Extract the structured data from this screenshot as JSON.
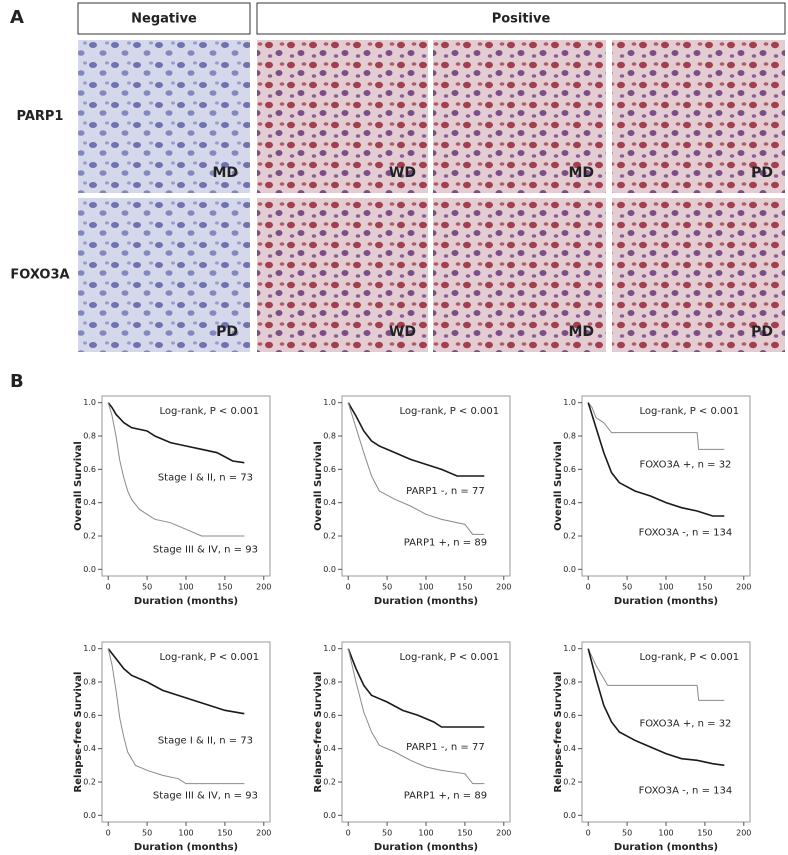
{
  "panel_a": {
    "label": "A",
    "header": [
      "Negative",
      "Positive"
    ],
    "rows": [
      {
        "label": "PARP1",
        "grades": [
          "MD",
          "WD",
          "MD",
          "PD"
        ]
      },
      {
        "label": "FOXO3A",
        "grades": [
          "PD",
          "WD",
          "MD",
          "PD"
        ]
      }
    ]
  },
  "panel_b": {
    "label": "B"
  },
  "chart_data": [
    {
      "type": "line",
      "ylabel": "Overall Survival",
      "xlabel": "Duration (months)",
      "annotation": "Log-rank, P < 0.001",
      "xlim": [
        -8,
        208
      ],
      "ylim": [
        -0.04,
        1.04
      ],
      "xticks": [
        0,
        50,
        100,
        150,
        200
      ],
      "yticks": [
        {
          "value": 0,
          "label": "0.0"
        },
        0.2,
        0.4,
        0.6,
        0.8,
        {
          "value": 1,
          "label": "1.0"
        }
      ],
      "series": [
        {
          "name": "Stage I & II, n = 73",
          "color": "#1a1a1a",
          "x": [
            0,
            5,
            10,
            20,
            30,
            50,
            60,
            80,
            100,
            120,
            140,
            160,
            175
          ],
          "values": [
            1,
            0.97,
            0.93,
            0.88,
            0.85,
            0.83,
            0.8,
            0.76,
            0.74,
            0.72,
            0.7,
            0.65,
            0.64
          ]
        },
        {
          "name": "Stage III & IV, n = 93",
          "color": "#8a8a8a",
          "x": [
            0,
            5,
            10,
            15,
            20,
            25,
            30,
            40,
            50,
            60,
            80,
            100,
            120,
            175
          ],
          "values": [
            1,
            0.92,
            0.8,
            0.65,
            0.55,
            0.47,
            0.42,
            0.36,
            0.33,
            0.3,
            0.28,
            0.24,
            0.2,
            0.2
          ]
        }
      ]
    },
    {
      "type": "line",
      "ylabel": "Overall Survival",
      "xlabel": "Duration (months)",
      "annotation": "Log-rank, P < 0.001",
      "xlim": [
        -8,
        208
      ],
      "ylim": [
        -0.04,
        1.04
      ],
      "xticks": [
        0,
        50,
        100,
        150,
        200
      ],
      "yticks": [
        {
          "value": 0,
          "label": "0.0"
        },
        0.2,
        0.4,
        0.6,
        0.8,
        {
          "value": 1,
          "label": "1.0"
        }
      ],
      "series": [
        {
          "name": "PARP1 -, n = 77",
          "color": "#1a1a1a",
          "x": [
            0,
            10,
            20,
            30,
            40,
            60,
            80,
            100,
            120,
            140,
            175
          ],
          "values": [
            1,
            0.92,
            0.83,
            0.77,
            0.74,
            0.7,
            0.66,
            0.63,
            0.6,
            0.56,
            0.56
          ]
        },
        {
          "name": "PARP1 +, n = 89",
          "color": "#8a8a8a",
          "x": [
            0,
            10,
            20,
            30,
            40,
            60,
            80,
            100,
            120,
            150,
            160,
            175
          ],
          "values": [
            1,
            0.85,
            0.7,
            0.56,
            0.47,
            0.42,
            0.38,
            0.33,
            0.3,
            0.27,
            0.21,
            0.21
          ]
        }
      ]
    },
    {
      "type": "line",
      "ylabel": "Overall Survival",
      "xlabel": "Duration (months)",
      "annotation": "Log-rank, P < 0.001",
      "xlim": [
        -8,
        208
      ],
      "ylim": [
        -0.04,
        1.04
      ],
      "xticks": [
        0,
        50,
        100,
        150,
        200
      ],
      "yticks": [
        {
          "value": 0,
          "label": "0.0"
        },
        0.2,
        0.4,
        0.6,
        0.8,
        {
          "value": 1,
          "label": "1.0"
        }
      ],
      "series": [
        {
          "name": "FOXO3A +, n = 32",
          "color": "#8a8a8a",
          "x": [
            0,
            5,
            10,
            20,
            30,
            140,
            142,
            175
          ],
          "values": [
            1,
            0.97,
            0.91,
            0.88,
            0.82,
            0.82,
            0.72,
            0.72
          ]
        },
        {
          "name": "FOXO3A -, n = 134",
          "color": "#1a1a1a",
          "x": [
            0,
            10,
            20,
            30,
            40,
            60,
            80,
            100,
            120,
            140,
            160,
            175
          ],
          "values": [
            1,
            0.85,
            0.7,
            0.58,
            0.52,
            0.47,
            0.44,
            0.4,
            0.37,
            0.35,
            0.32,
            0.32
          ]
        }
      ]
    },
    {
      "type": "line",
      "ylabel": "Relapse-free Survival",
      "xlabel": "Duration (months)",
      "annotation": "Log-rank, P < 0.001",
      "xlim": [
        -8,
        208
      ],
      "ylim": [
        -0.04,
        1.04
      ],
      "xticks": [
        0,
        50,
        100,
        150,
        200
      ],
      "yticks": [
        {
          "value": 0,
          "label": "0.0"
        },
        0.2,
        0.4,
        0.6,
        0.8,
        {
          "value": 1,
          "label": "1.0"
        }
      ],
      "series": [
        {
          "name": "Stage I & II, n = 73",
          "color": "#1a1a1a",
          "x": [
            0,
            10,
            20,
            30,
            50,
            70,
            90,
            110,
            130,
            150,
            175
          ],
          "values": [
            1,
            0.94,
            0.88,
            0.84,
            0.8,
            0.75,
            0.72,
            0.69,
            0.66,
            0.63,
            0.61
          ]
        },
        {
          "name": "Stage III & IV, n = 93",
          "color": "#8a8a8a",
          "x": [
            0,
            5,
            10,
            15,
            20,
            25,
            35,
            50,
            70,
            90,
            100,
            175
          ],
          "values": [
            1,
            0.9,
            0.75,
            0.58,
            0.47,
            0.38,
            0.3,
            0.27,
            0.24,
            0.22,
            0.19,
            0.19
          ]
        }
      ]
    },
    {
      "type": "line",
      "ylabel": "Relapse-free Survival",
      "xlabel": "Duration (months)",
      "annotation": "Log-rank, P < 0.001",
      "xlim": [
        -8,
        208
      ],
      "ylim": [
        -0.04,
        1.04
      ],
      "xticks": [
        0,
        50,
        100,
        150,
        200
      ],
      "yticks": [
        {
          "value": 0,
          "label": "0.0"
        },
        0.2,
        0.4,
        0.6,
        0.8,
        {
          "value": 1,
          "label": "1.0"
        }
      ],
      "series": [
        {
          "name": "PARP1 -, n = 77",
          "color": "#1a1a1a",
          "x": [
            0,
            10,
            20,
            30,
            50,
            70,
            90,
            110,
            120,
            175
          ],
          "values": [
            1,
            0.88,
            0.78,
            0.72,
            0.68,
            0.63,
            0.6,
            0.56,
            0.53,
            0.53
          ]
        },
        {
          "name": "PARP1 +, n = 89",
          "color": "#8a8a8a",
          "x": [
            0,
            10,
            20,
            30,
            40,
            60,
            80,
            100,
            120,
            150,
            160,
            175
          ],
          "values": [
            1,
            0.8,
            0.62,
            0.5,
            0.42,
            0.38,
            0.33,
            0.29,
            0.27,
            0.25,
            0.19,
            0.19
          ]
        }
      ]
    },
    {
      "type": "line",
      "ylabel": "Relapse-free Survival",
      "xlabel": "Duration (months)",
      "annotation": "Log-rank, P < 0.001",
      "xlim": [
        -8,
        208
      ],
      "ylim": [
        -0.04,
        1.04
      ],
      "xticks": [
        0,
        50,
        100,
        150,
        200
      ],
      "yticks": [
        {
          "value": 0,
          "label": "0.0"
        },
        0.2,
        0.4,
        0.6,
        0.8,
        {
          "value": 1,
          "label": "1.0"
        }
      ],
      "series": [
        {
          "name": "FOXO3A +, n = 32",
          "color": "#8a8a8a",
          "x": [
            0,
            10,
            20,
            25,
            140,
            142,
            175
          ],
          "values": [
            1,
            0.9,
            0.82,
            0.78,
            0.78,
            0.69,
            0.69
          ]
        },
        {
          "name": "FOXO3A -, n = 134",
          "color": "#1a1a1a",
          "x": [
            0,
            10,
            20,
            30,
            40,
            60,
            80,
            100,
            120,
            140,
            160,
            175
          ],
          "values": [
            1,
            0.82,
            0.66,
            0.56,
            0.5,
            0.45,
            0.41,
            0.37,
            0.34,
            0.33,
            0.31,
            0.3
          ]
        }
      ]
    }
  ]
}
